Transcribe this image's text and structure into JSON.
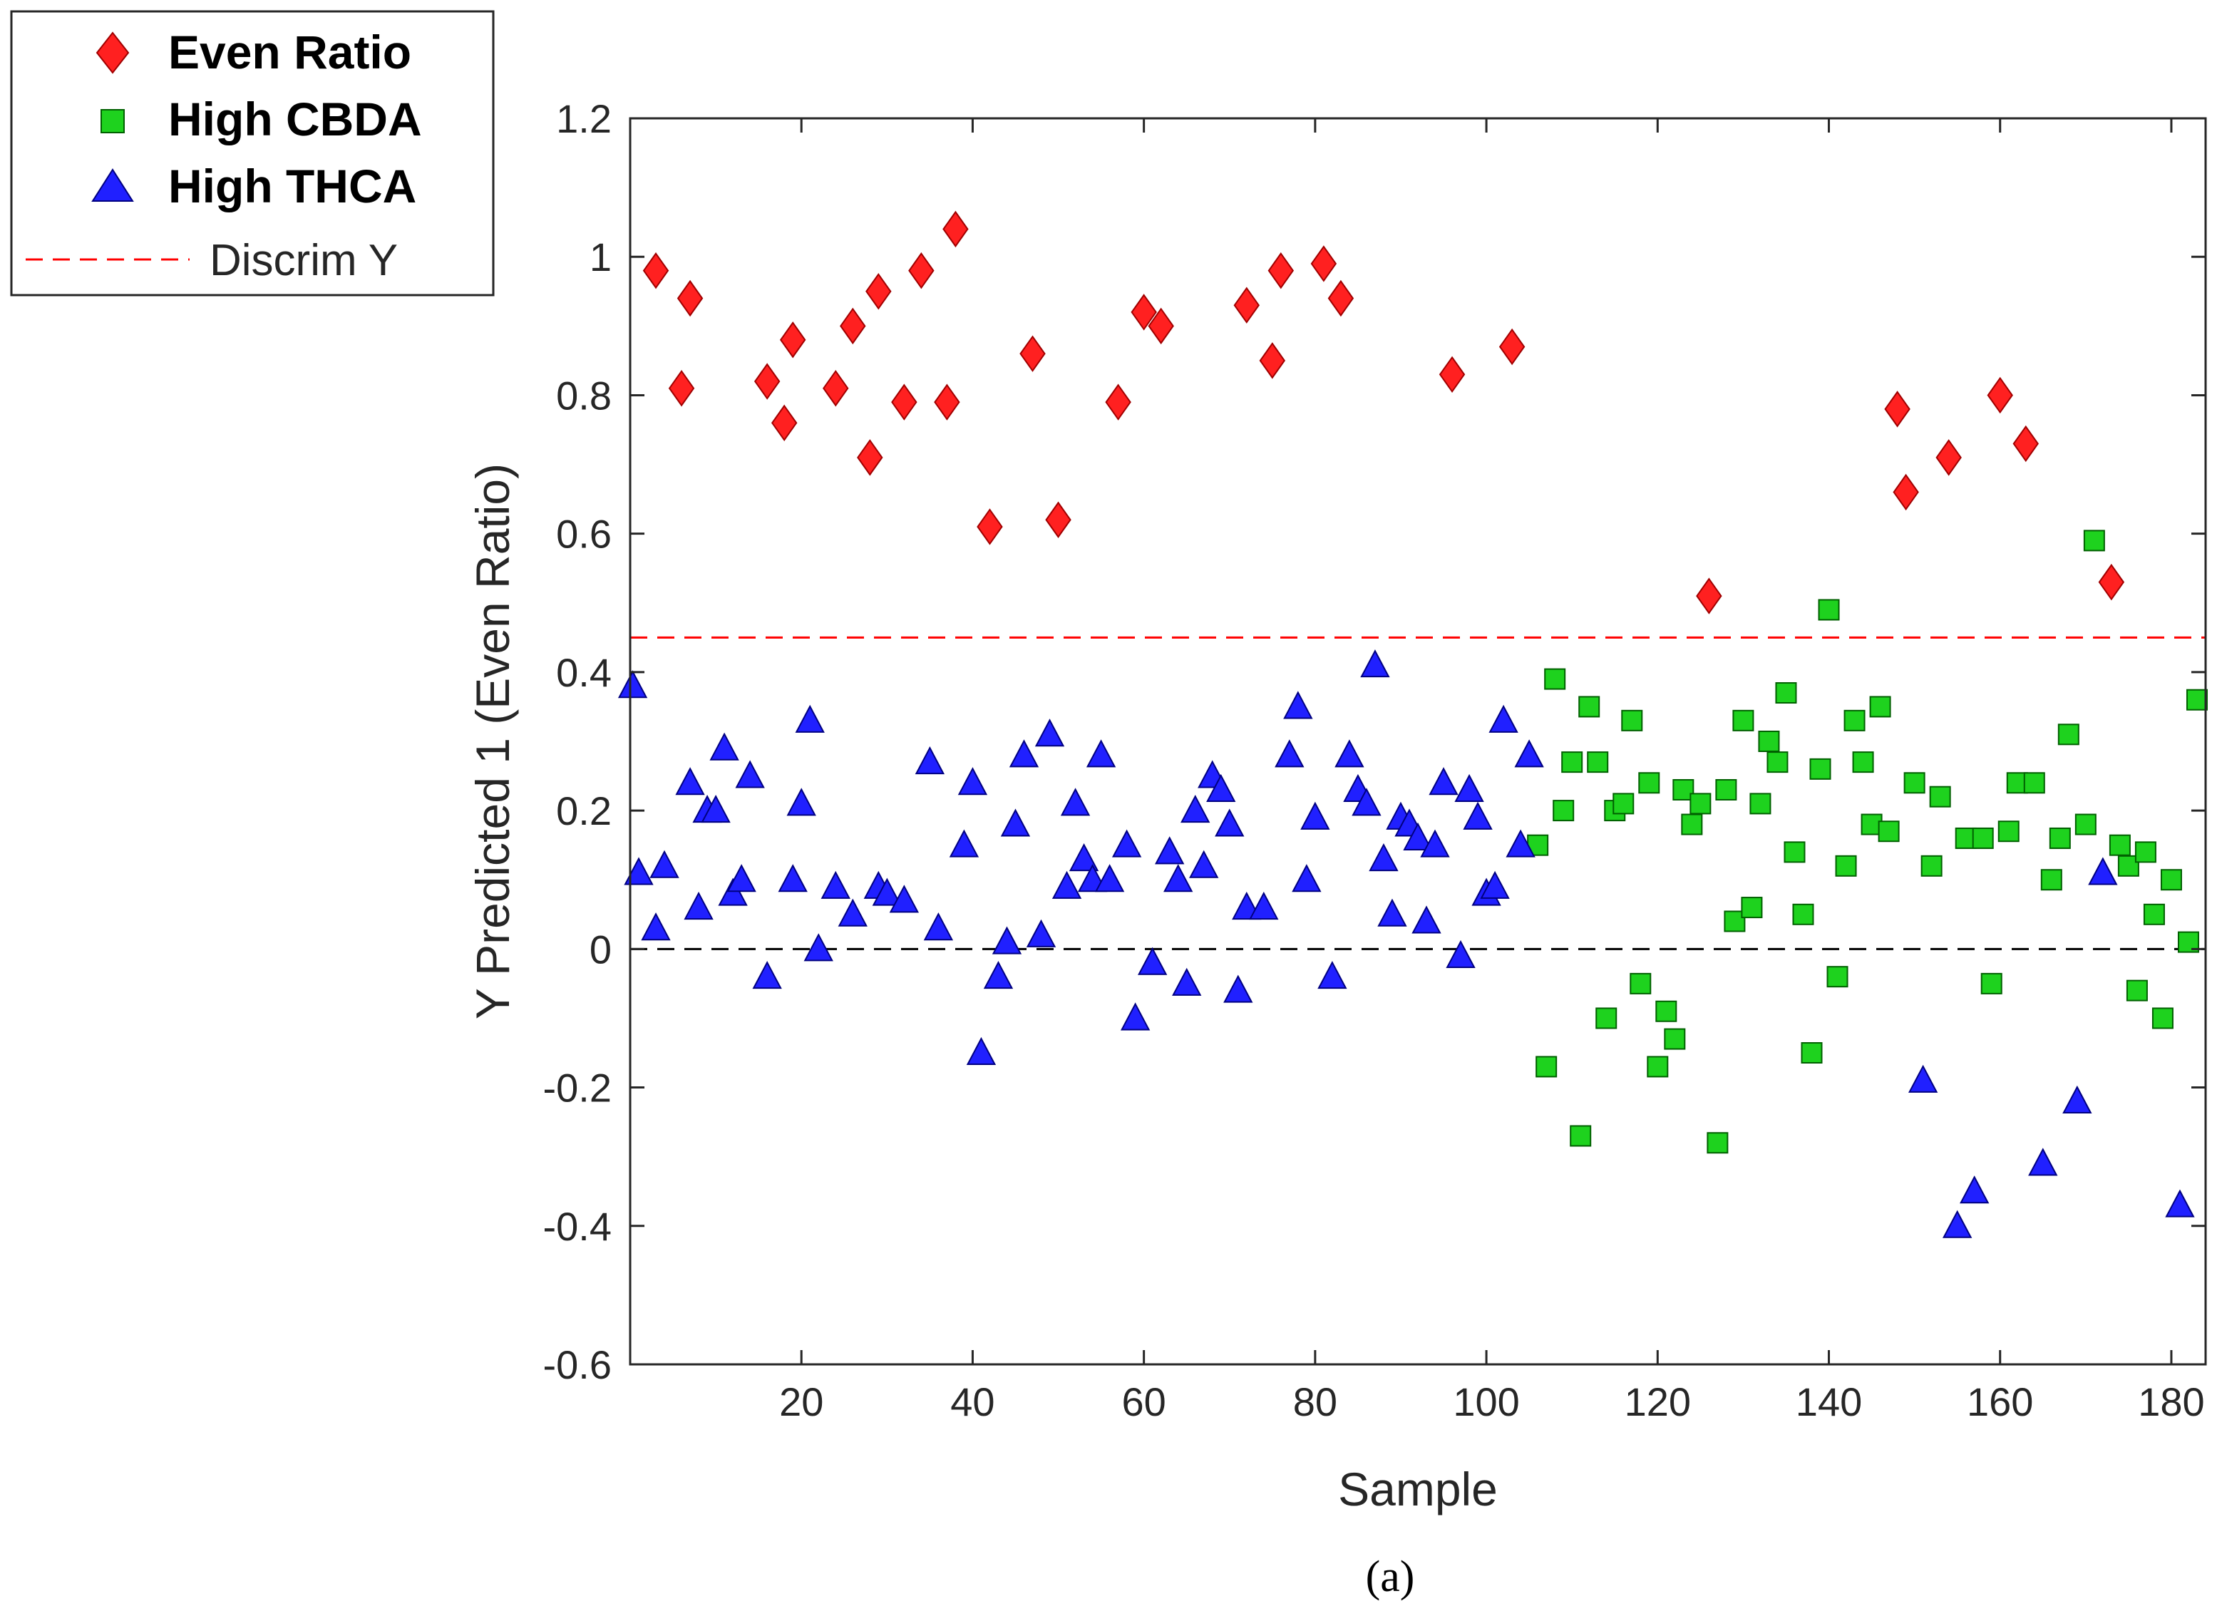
{
  "chart_data": {
    "type": "scatter",
    "title": "",
    "xlabel": "Sample",
    "ylabel": "Y Predicted 1 (Even Ratio)",
    "caption": "(a)",
    "xlim": [
      0,
      184
    ],
    "ylim": [
      -0.6,
      1.2
    ],
    "xticks": [
      20,
      40,
      60,
      80,
      100,
      120,
      140,
      160,
      180
    ],
    "yticks": [
      -0.6,
      -0.4,
      -0.2,
      0,
      0.2,
      0.4,
      0.6,
      0.8,
      1,
      1.2
    ],
    "ytick_labels": [
      "-0.6",
      "-0.4",
      "-0.2",
      "0",
      "0.2",
      "0.4",
      "0.6",
      "0.8",
      "1",
      "1.2"
    ],
    "grid": false,
    "legend_position": "outside-top-left",
    "reference_lines": [
      {
        "name": "Discrim Y",
        "y": 0.45,
        "color": "#ff0000",
        "style": "dashed"
      },
      {
        "name": "zero",
        "y": 0,
        "color": "#000000",
        "style": "dashed"
      }
    ],
    "series": [
      {
        "name": "Even Ratio",
        "legend_label": "Even Ratio",
        "marker": "diamond",
        "color": "#ff2020",
        "points": [
          [
            3,
            0.98
          ],
          [
            6,
            0.81
          ],
          [
            7,
            0.94
          ],
          [
            16,
            0.82
          ],
          [
            18,
            0.76
          ],
          [
            19,
            0.88
          ],
          [
            24,
            0.81
          ],
          [
            26,
            0.9
          ],
          [
            28,
            0.71
          ],
          [
            29,
            0.95
          ],
          [
            32,
            0.79
          ],
          [
            34,
            0.98
          ],
          [
            37,
            0.79
          ],
          [
            38,
            1.04
          ],
          [
            42,
            0.61
          ],
          [
            47,
            0.86
          ],
          [
            50,
            0.62
          ],
          [
            57,
            0.79
          ],
          [
            60,
            0.92
          ],
          [
            62,
            0.9
          ],
          [
            72,
            0.93
          ],
          [
            75,
            0.85
          ],
          [
            76,
            0.98
          ],
          [
            81,
            0.99
          ],
          [
            83,
            0.94
          ],
          [
            96,
            0.83
          ],
          [
            103,
            0.87
          ],
          [
            126,
            0.51
          ],
          [
            148,
            0.78
          ],
          [
            149,
            0.66
          ],
          [
            154,
            0.71
          ],
          [
            160,
            0.8
          ],
          [
            163,
            0.73
          ],
          [
            173,
            0.53
          ]
        ]
      },
      {
        "name": "High CBDA",
        "legend_label": "High CBDA",
        "marker": "square",
        "color": "#1ed21e",
        "points": [
          [
            106,
            0.15
          ],
          [
            107,
            -0.17
          ],
          [
            108,
            0.39
          ],
          [
            109,
            0.2
          ],
          [
            110,
            0.27
          ],
          [
            111,
            -0.27
          ],
          [
            112,
            0.35
          ],
          [
            113,
            0.27
          ],
          [
            114,
            -0.1
          ],
          [
            115,
            0.2
          ],
          [
            116,
            0.21
          ],
          [
            117,
            0.33
          ],
          [
            118,
            -0.05
          ],
          [
            119,
            0.24
          ],
          [
            120,
            -0.17
          ],
          [
            121,
            -0.09
          ],
          [
            122,
            -0.13
          ],
          [
            123,
            0.23
          ],
          [
            124,
            0.18
          ],
          [
            125,
            0.21
          ],
          [
            127,
            -0.28
          ],
          [
            128,
            0.23
          ],
          [
            129,
            0.04
          ],
          [
            130,
            0.33
          ],
          [
            131,
            0.06
          ],
          [
            132,
            0.21
          ],
          [
            133,
            0.3
          ],
          [
            134,
            0.27
          ],
          [
            135,
            0.37
          ],
          [
            136,
            0.14
          ],
          [
            137,
            0.05
          ],
          [
            138,
            -0.15
          ],
          [
            139,
            0.26
          ],
          [
            140,
            0.49
          ],
          [
            141,
            -0.04
          ],
          [
            142,
            0.12
          ],
          [
            143,
            0.33
          ],
          [
            144,
            0.27
          ],
          [
            145,
            0.18
          ],
          [
            146,
            0.35
          ],
          [
            147,
            0.17
          ],
          [
            150,
            0.24
          ],
          [
            152,
            0.12
          ],
          [
            153,
            0.22
          ],
          [
            156,
            0.16
          ],
          [
            158,
            0.16
          ],
          [
            159,
            -0.05
          ],
          [
            161,
            0.17
          ],
          [
            162,
            0.24
          ],
          [
            164,
            0.24
          ],
          [
            166,
            0.1
          ],
          [
            167,
            0.16
          ],
          [
            168,
            0.31
          ],
          [
            170,
            0.18
          ],
          [
            171,
            0.59
          ],
          [
            174,
            0.15
          ],
          [
            175,
            0.12
          ],
          [
            176,
            -0.06
          ],
          [
            177,
            0.14
          ],
          [
            178,
            0.05
          ],
          [
            179,
            -0.1
          ],
          [
            180,
            0.1
          ],
          [
            182,
            0.01
          ],
          [
            183,
            0.36
          ]
        ]
      },
      {
        "name": "High THCA",
        "legend_label": "High THCA",
        "marker": "triangle",
        "color": "#2020ff",
        "points": [
          [
            0.3,
            0.38
          ],
          [
            1,
            0.11
          ],
          [
            3,
            0.03
          ],
          [
            4,
            0.12
          ],
          [
            7,
            0.24
          ],
          [
            8,
            0.06
          ],
          [
            9,
            0.2
          ],
          [
            10,
            0.2
          ],
          [
            11,
            0.29
          ],
          [
            12,
            0.08
          ],
          [
            13,
            0.1
          ],
          [
            14,
            0.25
          ],
          [
            16,
            -0.04
          ],
          [
            19,
            0.1
          ],
          [
            20,
            0.21
          ],
          [
            21,
            0.33
          ],
          [
            22,
            0.0
          ],
          [
            24,
            0.09
          ],
          [
            26,
            0.05
          ],
          [
            29,
            0.09
          ],
          [
            30,
            0.08
          ],
          [
            32,
            0.07
          ],
          [
            35,
            0.27
          ],
          [
            36,
            0.03
          ],
          [
            39,
            0.15
          ],
          [
            40,
            0.24
          ],
          [
            41,
            -0.15
          ],
          [
            43,
            -0.04
          ],
          [
            44,
            0.01
          ],
          [
            45,
            0.18
          ],
          [
            46,
            0.28
          ],
          [
            48,
            0.02
          ],
          [
            49,
            0.31
          ],
          [
            51,
            0.09
          ],
          [
            52,
            0.21
          ],
          [
            53,
            0.13
          ],
          [
            54,
            0.1
          ],
          [
            55,
            0.28
          ],
          [
            56,
            0.1
          ],
          [
            58,
            0.15
          ],
          [
            59,
            -0.1
          ],
          [
            61,
            -0.02
          ],
          [
            63,
            0.14
          ],
          [
            64,
            0.1
          ],
          [
            65,
            -0.05
          ],
          [
            66,
            0.2
          ],
          [
            67,
            0.12
          ],
          [
            68,
            0.25
          ],
          [
            69,
            0.23
          ],
          [
            70,
            0.18
          ],
          [
            71,
            -0.06
          ],
          [
            72,
            0.06
          ],
          [
            74,
            0.06
          ],
          [
            77,
            0.28
          ],
          [
            78,
            0.35
          ],
          [
            79,
            0.1
          ],
          [
            80,
            0.19
          ],
          [
            82,
            -0.04
          ],
          [
            84,
            0.28
          ],
          [
            85,
            0.23
          ],
          [
            86,
            0.21
          ],
          [
            87,
            0.41
          ],
          [
            88,
            0.13
          ],
          [
            89,
            0.05
          ],
          [
            90,
            0.19
          ],
          [
            91,
            0.18
          ],
          [
            92,
            0.16
          ],
          [
            93,
            0.04
          ],
          [
            94,
            0.15
          ],
          [
            95,
            0.24
          ],
          [
            97,
            -0.01
          ],
          [
            98,
            0.23
          ],
          [
            99,
            0.19
          ],
          [
            100,
            0.08
          ],
          [
            101,
            0.09
          ],
          [
            102,
            0.33
          ],
          [
            104,
            0.15
          ],
          [
            105,
            0.28
          ],
          [
            151,
            -0.19
          ],
          [
            155,
            -0.4
          ],
          [
            157,
            -0.35
          ],
          [
            165,
            -0.31
          ],
          [
            169,
            -0.22
          ],
          [
            172,
            0.11
          ],
          [
            181,
            -0.37
          ]
        ]
      }
    ],
    "legend_extra": {
      "label": "Discrim Y"
    }
  }
}
